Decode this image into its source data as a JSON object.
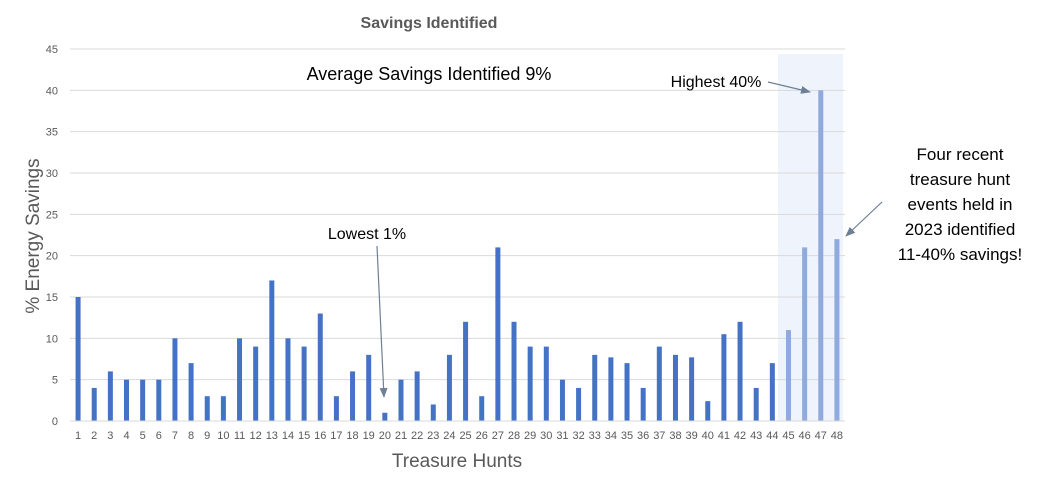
{
  "chart_data": {
    "type": "bar",
    "title": "Savings Identified",
    "xlabel": "Treasure Hunts",
    "ylabel": "% Energy Savings",
    "ylim": [
      0,
      45
    ],
    "yticks": [
      0,
      5,
      10,
      15,
      20,
      25,
      30,
      35,
      40,
      45
    ],
    "grid": true,
    "categories": [
      "1",
      "2",
      "3",
      "4",
      "5",
      "6",
      "7",
      "8",
      "9",
      "10",
      "11",
      "12",
      "13",
      "14",
      "15",
      "16",
      "17",
      "18",
      "19",
      "20",
      "21",
      "22",
      "23",
      "24",
      "25",
      "26",
      "27",
      "28",
      "29",
      "30",
      "31",
      "32",
      "33",
      "34",
      "35",
      "36",
      "37",
      "38",
      "39",
      "40",
      "41",
      "42",
      "43",
      "44",
      "45",
      "46",
      "47",
      "48"
    ],
    "values": [
      15,
      4,
      6,
      5,
      5,
      5,
      10,
      7,
      3,
      3,
      10,
      9,
      17,
      10,
      9,
      13,
      3,
      6,
      8,
      1,
      5,
      6,
      2,
      8,
      12,
      3,
      21,
      12,
      9,
      9,
      5,
      4,
      8,
      7.7,
      7,
      4,
      9,
      8,
      7.7,
      2.4,
      10.5,
      12,
      4,
      7,
      11,
      21,
      40,
      22
    ],
    "highlighted_categories": [
      "45",
      "46",
      "47",
      "48"
    ],
    "colors": {
      "bar": "#4472C4",
      "highlight_bar": "#8FAADC",
      "highlight_band": "#EEF3FC",
      "grid": "#D9D9D9",
      "arrow": "#6E7F96"
    },
    "annotations": {
      "average": "Average Savings Identified 9%",
      "highest": "Highest 40%",
      "lowest": "Lowest 1%",
      "recent_lines": [
        "Four recent",
        "treasure hunt",
        "events held in",
        "2023 identified",
        "11-40% savings!"
      ]
    }
  }
}
